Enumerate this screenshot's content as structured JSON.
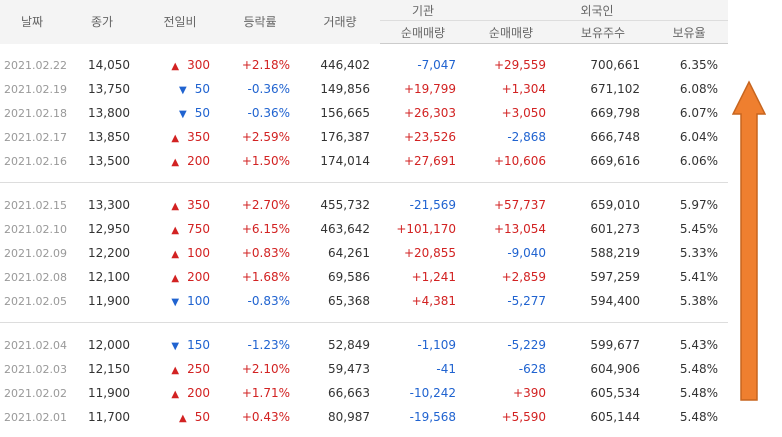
{
  "headers": {
    "date": "날짜",
    "close": "종가",
    "change": "전일비",
    "rate": "등락률",
    "volume": "거래량",
    "inst_group": "기관",
    "foreign_group": "외국인",
    "inst_net": "순매매량",
    "foreign_net": "순매매량",
    "holdings": "보유주수",
    "holding_ratio": "보유율"
  },
  "colors": {
    "up": "#d22222",
    "down": "#2063d0",
    "arrow_fill": "#ef7f2f",
    "arrow_stroke": "#c7651f"
  },
  "icons": {
    "up": "up-triangle-icon",
    "down": "down-triangle-icon",
    "arrow": "up-arrow-icon"
  },
  "rows": [
    {
      "date": "2021.02.22",
      "close": "14,050",
      "dir": "up",
      "tri": "▲",
      "change": "300",
      "rate": "+2.18%",
      "volume": "446,402",
      "inst": "-7,047",
      "inst_dir": "down",
      "foreign": "+29,559",
      "foreign_dir": "up",
      "holdings": "700,661",
      "ratio": "6.35%"
    },
    {
      "date": "2021.02.19",
      "close": "13,750",
      "dir": "down",
      "tri": "▼",
      "change": "50",
      "rate": "-0.36%",
      "volume": "149,856",
      "inst": "+19,799",
      "inst_dir": "up",
      "foreign": "+1,304",
      "foreign_dir": "up",
      "holdings": "671,102",
      "ratio": "6.08%"
    },
    {
      "date": "2021.02.18",
      "close": "13,800",
      "dir": "down",
      "tri": "▼",
      "change": "50",
      "rate": "-0.36%",
      "volume": "156,665",
      "inst": "+26,303",
      "inst_dir": "up",
      "foreign": "+3,050",
      "foreign_dir": "up",
      "holdings": "669,798",
      "ratio": "6.07%"
    },
    {
      "date": "2021.02.17",
      "close": "13,850",
      "dir": "up",
      "tri": "▲",
      "change": "350",
      "rate": "+2.59%",
      "volume": "176,387",
      "inst": "+23,526",
      "inst_dir": "up",
      "foreign": "-2,868",
      "foreign_dir": "down",
      "holdings": "666,748",
      "ratio": "6.04%"
    },
    {
      "date": "2021.02.16",
      "close": "13,500",
      "dir": "up",
      "tri": "▲",
      "change": "200",
      "rate": "+1.50%",
      "volume": "174,014",
      "inst": "+27,691",
      "inst_dir": "up",
      "foreign": "+10,606",
      "foreign_dir": "up",
      "holdings": "669,616",
      "ratio": "6.06%"
    },
    {
      "date": "2021.02.15",
      "close": "13,300",
      "dir": "up",
      "tri": "▲",
      "change": "350",
      "rate": "+2.70%",
      "volume": "455,732",
      "inst": "-21,569",
      "inst_dir": "down",
      "foreign": "+57,737",
      "foreign_dir": "up",
      "holdings": "659,010",
      "ratio": "5.97%"
    },
    {
      "date": "2021.02.10",
      "close": "12,950",
      "dir": "up",
      "tri": "▲",
      "change": "750",
      "rate": "+6.15%",
      "volume": "463,642",
      "inst": "+101,170",
      "inst_dir": "up",
      "foreign": "+13,054",
      "foreign_dir": "up",
      "holdings": "601,273",
      "ratio": "5.45%"
    },
    {
      "date": "2021.02.09",
      "close": "12,200",
      "dir": "up",
      "tri": "▲",
      "change": "100",
      "rate": "+0.83%",
      "volume": "64,261",
      "inst": "+20,855",
      "inst_dir": "up",
      "foreign": "-9,040",
      "foreign_dir": "down",
      "holdings": "588,219",
      "ratio": "5.33%"
    },
    {
      "date": "2021.02.08",
      "close": "12,100",
      "dir": "up",
      "tri": "▲",
      "change": "200",
      "rate": "+1.68%",
      "volume": "69,586",
      "inst": "+1,241",
      "inst_dir": "up",
      "foreign": "+2,859",
      "foreign_dir": "up",
      "holdings": "597,259",
      "ratio": "5.41%"
    },
    {
      "date": "2021.02.05",
      "close": "11,900",
      "dir": "down",
      "tri": "▼",
      "change": "100",
      "rate": "-0.83%",
      "volume": "65,368",
      "inst": "+4,381",
      "inst_dir": "up",
      "foreign": "-5,277",
      "foreign_dir": "down",
      "holdings": "594,400",
      "ratio": "5.38%"
    },
    {
      "date": "2021.02.04",
      "close": "12,000",
      "dir": "down",
      "tri": "▼",
      "change": "150",
      "rate": "-1.23%",
      "volume": "52,849",
      "inst": "-1,109",
      "inst_dir": "down",
      "foreign": "-5,229",
      "foreign_dir": "down",
      "holdings": "599,677",
      "ratio": "5.43%"
    },
    {
      "date": "2021.02.03",
      "close": "12,150",
      "dir": "up",
      "tri": "▲",
      "change": "250",
      "rate": "+2.10%",
      "volume": "59,473",
      "inst": "-41",
      "inst_dir": "down",
      "foreign": "-628",
      "foreign_dir": "down",
      "holdings": "604,906",
      "ratio": "5.48%"
    },
    {
      "date": "2021.02.02",
      "close": "11,900",
      "dir": "up",
      "tri": "▲",
      "change": "200",
      "rate": "+1.71%",
      "volume": "66,663",
      "inst": "-10,242",
      "inst_dir": "down",
      "foreign": "+390",
      "foreign_dir": "up",
      "holdings": "605,534",
      "ratio": "5.48%"
    },
    {
      "date": "2021.02.01",
      "close": "11,700",
      "dir": "up",
      "tri": "▲",
      "change": "50",
      "rate": "+0.43%",
      "volume": "80,987",
      "inst": "-19,568",
      "inst_dir": "down",
      "foreign": "+5,590",
      "foreign_dir": "up",
      "holdings": "605,144",
      "ratio": "5.48%"
    }
  ]
}
